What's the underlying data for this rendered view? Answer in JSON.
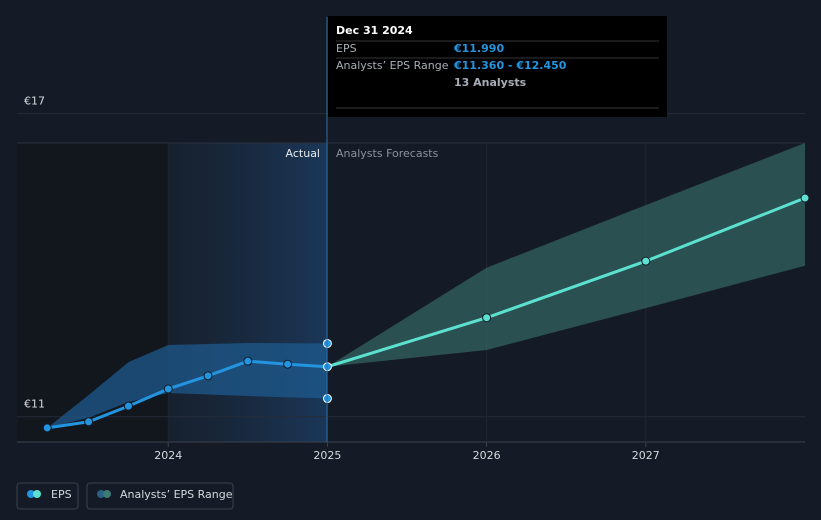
{
  "chart_data": {
    "type": "line",
    "xlim": [
      2023.05,
      2028
    ],
    "xticks": [
      2024,
      2025,
      2026,
      2027
    ],
    "ylim": [
      10.5,
      17.27
    ],
    "yticks": [
      {
        "value": 11,
        "label": "€11"
      },
      {
        "value": 17,
        "label": "€17"
      }
    ],
    "grid": true,
    "series": [
      {
        "name": "EPS",
        "color": "#2394df",
        "x": [
          2023.24,
          2023.5,
          2023.75,
          2024,
          2024.25,
          2024.5,
          2024.75,
          2025
        ],
        "values": [
          10.78,
          10.9,
          11.21,
          11.55,
          11.81,
          12.1,
          12.04,
          11.99
        ]
      },
      {
        "name": "Analysts’ EPS Range",
        "color": "#2394df",
        "x": [
          2023.24,
          2023.5,
          2023.75,
          2024,
          2024.5,
          2025
        ],
        "high": [
          10.78,
          11.43,
          12.08,
          12.42,
          12.46,
          12.45
        ],
        "low": [
          10.78,
          10.98,
          11.29,
          11.47,
          11.41,
          11.36
        ]
      }
    ],
    "forecast": {
      "color": "#5ce1d0",
      "x": [
        2025,
        2026,
        2027,
        2028
      ],
      "values": [
        11.99,
        12.96,
        14.08,
        15.33
      ],
      "high": [
        11.99,
        13.95,
        15.19,
        16.42
      ],
      "low": [
        11.99,
        12.32,
        13.15,
        13.99
      ]
    },
    "annotations": {
      "actual": "Actual",
      "forecast": "Analysts Forecasts"
    },
    "tooltip": {
      "date": "Dec 31 2024",
      "eps_label": "EPS",
      "eps_value": "€11.990",
      "range_label": "Analysts’ EPS Range",
      "range_value": "€11.360 - €12.450",
      "analysts": "13 Analysts"
    }
  }
}
